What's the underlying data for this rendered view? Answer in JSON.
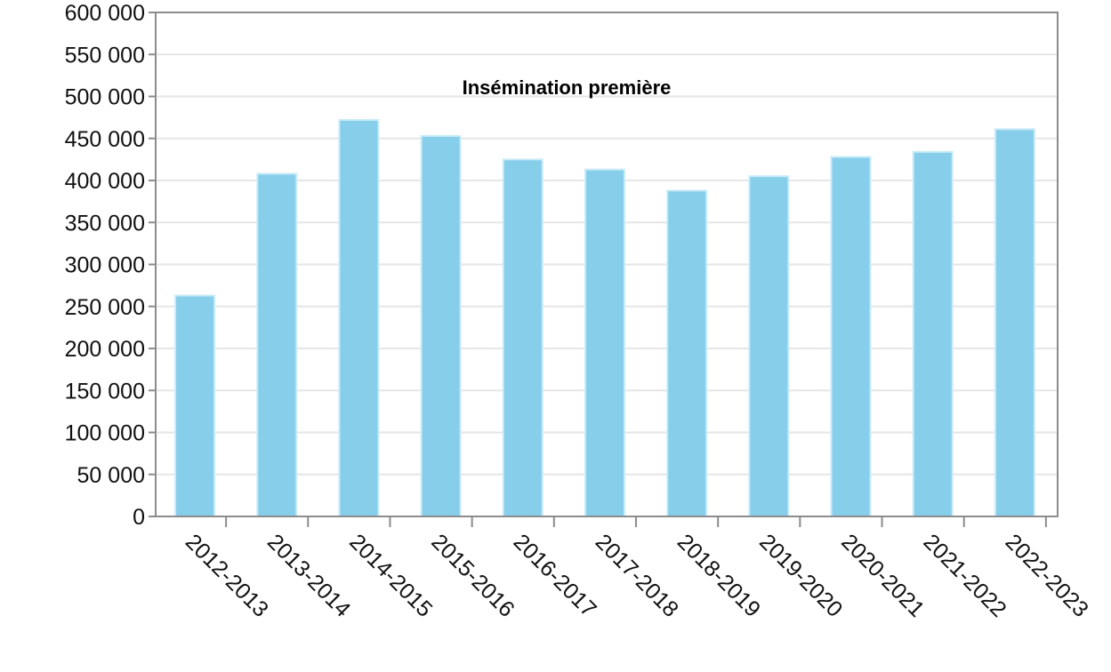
{
  "chart_data": {
    "type": "bar",
    "title": "Insémination première",
    "xlabel": "",
    "ylabel": "",
    "categories": [
      "2012-2013",
      "2013-2014",
      "2014-2015",
      "2015-2016",
      "2016-2017",
      "2017-2018",
      "2018-2019",
      "2019-2020",
      "2020-2021",
      "2021-2022",
      "2022-2023"
    ],
    "values": [
      263000,
      408000,
      472000,
      453000,
      425000,
      413000,
      388000,
      405000,
      428000,
      434000,
      461000
    ],
    "ylim": [
      0,
      600000
    ],
    "yticks": [
      "0",
      "50 000",
      "100 000",
      "150 000",
      "200 000",
      "250 000",
      "300 000",
      "350 000",
      "400 000",
      "450 000",
      "500 000",
      "550 000",
      "600 000"
    ],
    "grid": true,
    "legend": "none",
    "colors": {
      "bar": "#87CEEB",
      "bar_edge": "#c9ebf7",
      "grid": "#e6e6e6",
      "frame": "#8c8c8c"
    }
  }
}
